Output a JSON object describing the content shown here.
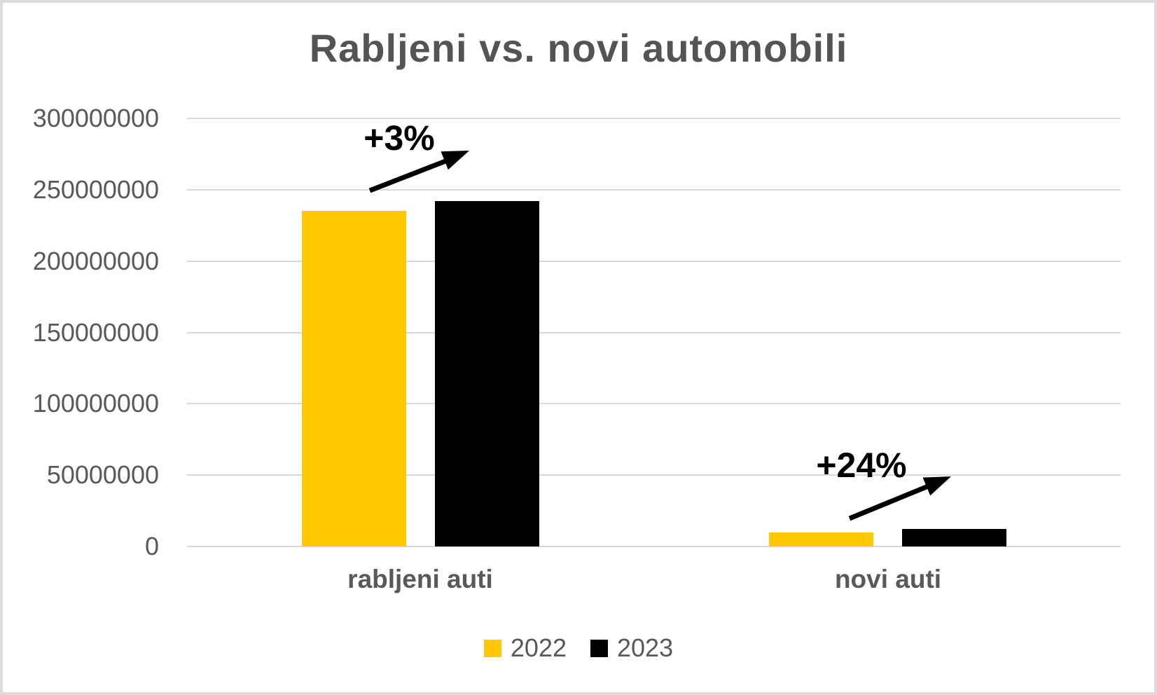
{
  "chart_data": {
    "type": "bar",
    "title": "Rabljeni vs. novi automobili",
    "categories": [
      "rabljeni auti",
      "novi auti"
    ],
    "series": [
      {
        "name": "2022",
        "color": "#FFC800",
        "values": [
          235000000,
          10000000
        ]
      },
      {
        "name": "2023",
        "color": "#000000",
        "values": [
          242000000,
          12400000
        ]
      }
    ],
    "annotations": [
      {
        "label": "+3%",
        "category": "rabljeni auti"
      },
      {
        "label": "+24%",
        "category": "novi auti"
      }
    ],
    "y_axis": {
      "min": 0,
      "max": 300000000,
      "tick_interval": 50000000,
      "tick_labels": [
        "300000000",
        "250000000",
        "200000000",
        "150000000",
        "100000000",
        "50000000",
        "0"
      ]
    },
    "xlabel": "",
    "ylabel": "",
    "grid": true,
    "legend_position": "bottom"
  },
  "colors": {
    "bar_2022": "#FFC800",
    "bar_2023": "#000000",
    "gridline": "#D9D9D9",
    "axis_text": "#595959",
    "title_text": "#545454",
    "annotation_text": "#000000",
    "background": "#FFFFFF",
    "frame_border": "#DCDCDC"
  }
}
